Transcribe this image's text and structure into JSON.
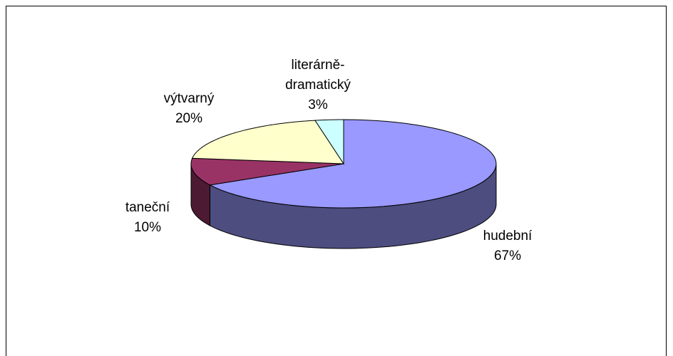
{
  "chart_data": {
    "type": "pie3d",
    "categories": [
      "hudební",
      "taneční",
      "výtvarný",
      "literárně-dramatický"
    ],
    "values": [
      67,
      10,
      20,
      3
    ],
    "value_labels": [
      "67%",
      "10%",
      "20%",
      "3%"
    ],
    "colors": [
      "#9999ff",
      "#993366",
      "#ffffcc",
      "#ccffff"
    ]
  }
}
